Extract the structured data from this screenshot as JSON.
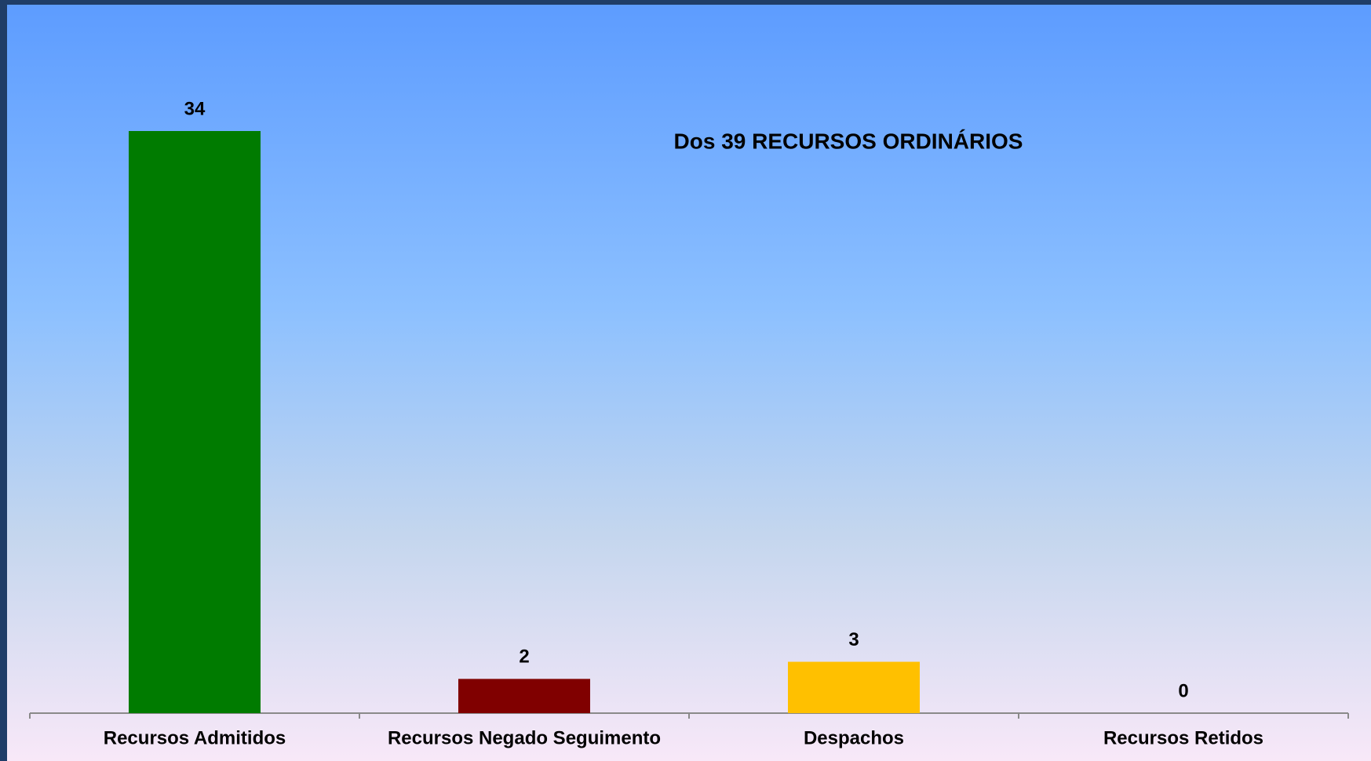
{
  "chart_data": {
    "type": "bar",
    "title": "Dos 39 RECURSOS ORDINÁRIOS",
    "categories": [
      "Recursos Admitidos",
      "Recursos Negado Seguimento",
      "Despachos",
      "Recursos Retidos"
    ],
    "values": [
      34,
      2,
      3,
      0
    ],
    "colors": [
      "#007b00",
      "#800000",
      "#ffc000",
      "#4472c4"
    ]
  }
}
